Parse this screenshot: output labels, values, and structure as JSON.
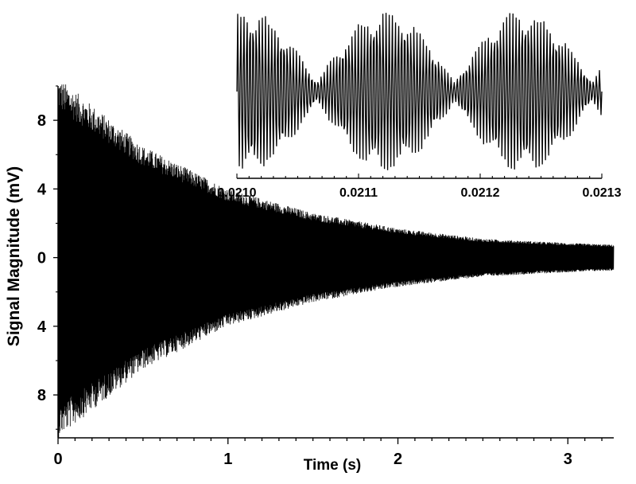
{
  "chart_data": [
    {
      "type": "line",
      "title": "",
      "xlabel": "Time (s)",
      "ylabel": "Signal Magnitude (mV)",
      "xlim": [
        0,
        3.27
      ],
      "ylim": [
        -10.5,
        10
      ],
      "x_ticks": [
        0,
        1,
        2,
        3
      ],
      "y_ticks": [
        8,
        4,
        0,
        -4,
        -8
      ],
      "y_tick_labels": [
        "8",
        "4",
        "0",
        "4",
        "8"
      ],
      "series": [
        {
          "description_free": true,
          "envelope_points": [
            {
              "t": 0.0,
              "amp": 10.5
            },
            {
              "t": 0.5,
              "amp": 6.5
            },
            {
              "t": 1.0,
              "amp": 4.0
            },
            {
              "t": 1.5,
              "amp": 2.6
            },
            {
              "t": 2.0,
              "amp": 1.7
            },
            {
              "t": 2.5,
              "amp": 1.1
            },
            {
              "t": 3.0,
              "amp": 0.85
            },
            {
              "t": 3.27,
              "amp": 0.75
            }
          ]
        }
      ],
      "line_color": "#000000"
    },
    {
      "type": "line",
      "title": "",
      "xlabel": "",
      "ylabel": "",
      "xlim": [
        0.021,
        0.0213
      ],
      "x_ticks": [
        0.021,
        0.0211,
        0.0212,
        0.0213
      ],
      "x_tick_labels": [
        "0.0210",
        "0.0211",
        "0.0212",
        "0.0213"
      ],
      "line_color": "#000000"
    }
  ]
}
